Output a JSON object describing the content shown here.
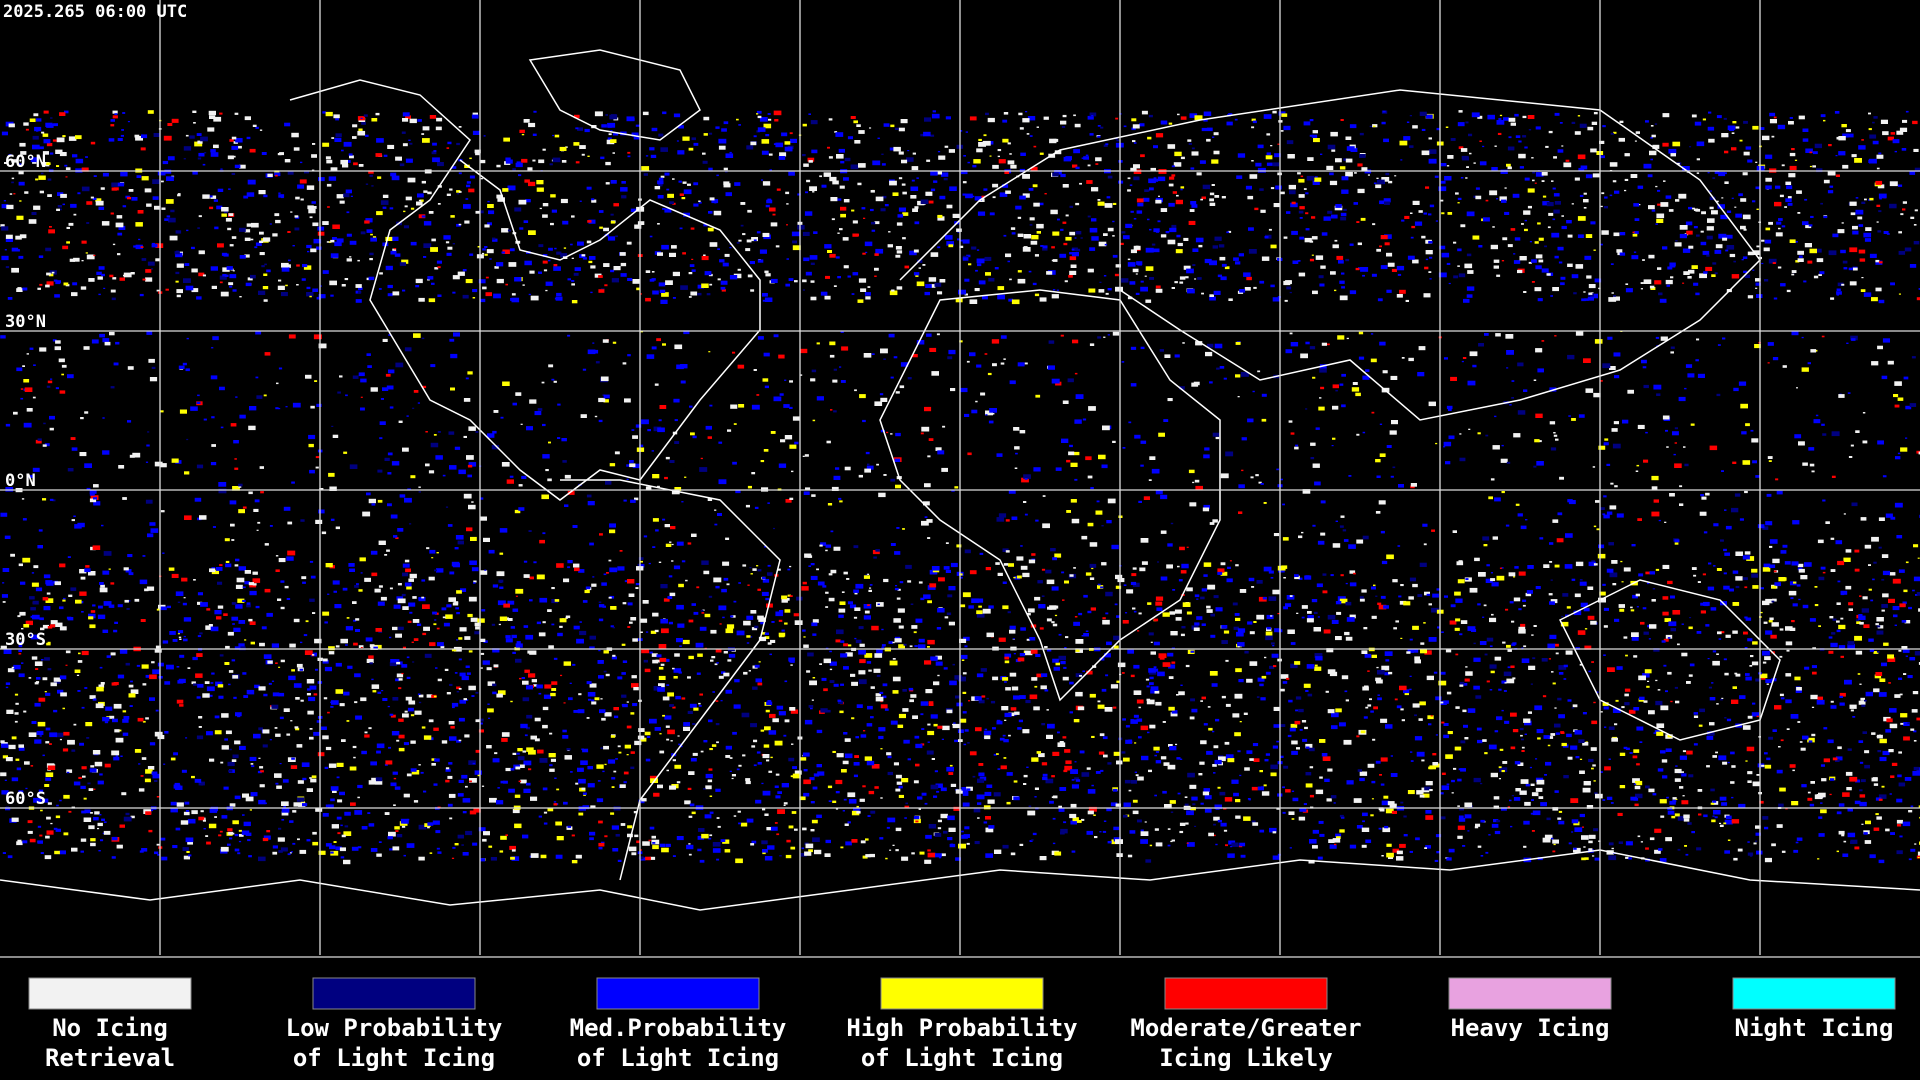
{
  "timestamp": "2025.265 06:00 UTC",
  "latitude_labels": [
    "60°N",
    "30°N",
    "0°N",
    "30°S",
    "60°S"
  ],
  "legend": [
    {
      "lines": [
        "No Icing",
        "Retrieval"
      ],
      "color": "#f2f2f2"
    },
    {
      "lines": [
        "Low Probability",
        "of Light Icing"
      ],
      "color": "#000080"
    },
    {
      "lines": [
        "Med.Probability",
        "of Light Icing"
      ],
      "color": "#0000ff"
    },
    {
      "lines": [
        "High Probability",
        "of Light Icing"
      ],
      "color": "#ffff00"
    },
    {
      "lines": [
        "Moderate/Greater",
        "Icing Likely"
      ],
      "color": "#ff0000"
    },
    {
      "lines": [
        "Heavy Icing"
      ],
      "color": "#e8a2e0"
    },
    {
      "lines": [
        "Night Icing"
      ],
      "color": "#00ffff"
    }
  ]
}
